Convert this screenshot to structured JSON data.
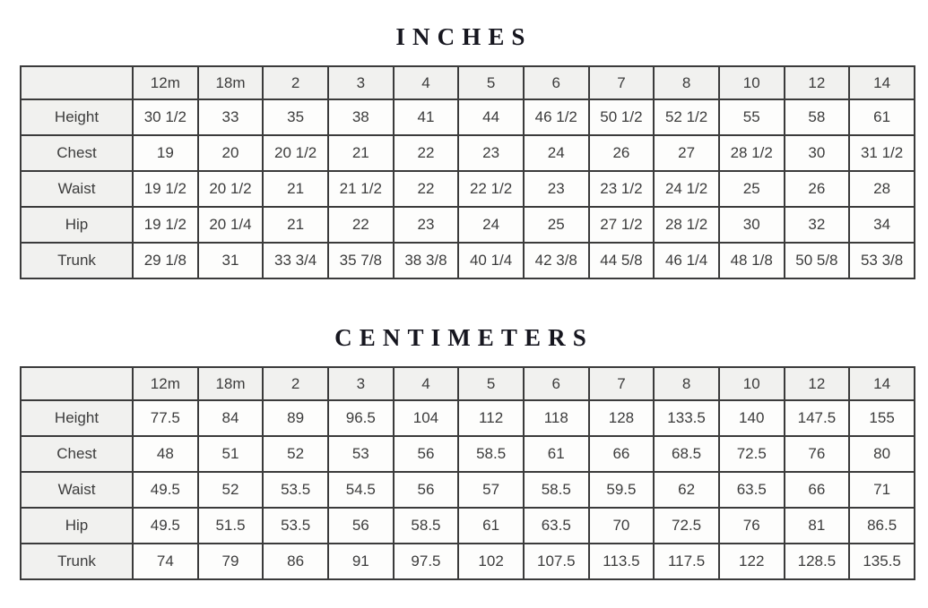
{
  "colors": {
    "table_border": "#3b3b3b",
    "header_background": "#f1f1ef",
    "cell_background": "#fdfdfc",
    "title_color": "#16161f",
    "cell_text": "#3c3c3c"
  },
  "tables": [
    {
      "title": "INCHES",
      "corner": "",
      "columns": [
        "12m",
        "18m",
        "2",
        "3",
        "4",
        "5",
        "6",
        "7",
        "8",
        "10",
        "12",
        "14"
      ],
      "rows": [
        {
          "label": "Height",
          "values": [
            "30 1/2",
            "33",
            "35",
            "38",
            "41",
            "44",
            "46 1/2",
            "50 1/2",
            "52 1/2",
            "55",
            "58",
            "61"
          ]
        },
        {
          "label": "Chest",
          "values": [
            "19",
            "20",
            "20 1/2",
            "21",
            "22",
            "23",
            "24",
            "26",
            "27",
            "28 1/2",
            "30",
            "31 1/2"
          ]
        },
        {
          "label": "Waist",
          "values": [
            "19 1/2",
            "20 1/2",
            "21",
            "21 1/2",
            "22",
            "22 1/2",
            "23",
            "23 1/2",
            "24 1/2",
            "25",
            "26",
            "28"
          ]
        },
        {
          "label": "Hip",
          "values": [
            "19 1/2",
            "20 1/4",
            "21",
            "22",
            "23",
            "24",
            "25",
            "27 1/2",
            "28 1/2",
            "30",
            "32",
            "34"
          ]
        },
        {
          "label": "Trunk",
          "values": [
            "29 1/8",
            "31",
            "33 3/4",
            "35 7/8",
            "38 3/8",
            "40 1/4",
            "42 3/8",
            "44 5/8",
            "46 1/4",
            "48 1/8",
            "50 5/8",
            "53 3/8"
          ]
        }
      ]
    },
    {
      "title": "CENTIMETERS",
      "corner": "",
      "columns": [
        "12m",
        "18m",
        "2",
        "3",
        "4",
        "5",
        "6",
        "7",
        "8",
        "10",
        "12",
        "14"
      ],
      "rows": [
        {
          "label": "Height",
          "values": [
            "77.5",
            "84",
            "89",
            "96.5",
            "104",
            "112",
            "118",
            "128",
            "133.5",
            "140",
            "147.5",
            "155"
          ]
        },
        {
          "label": "Chest",
          "values": [
            "48",
            "51",
            "52",
            "53",
            "56",
            "58.5",
            "61",
            "66",
            "68.5",
            "72.5",
            "76",
            "80"
          ]
        },
        {
          "label": "Waist",
          "values": [
            "49.5",
            "52",
            "53.5",
            "54.5",
            "56",
            "57",
            "58.5",
            "59.5",
            "62",
            "63.5",
            "66",
            "71"
          ]
        },
        {
          "label": "Hip",
          "values": [
            "49.5",
            "51.5",
            "53.5",
            "56",
            "58.5",
            "61",
            "63.5",
            "70",
            "72.5",
            "76",
            "81",
            "86.5"
          ]
        },
        {
          "label": "Trunk",
          "values": [
            "74",
            "79",
            "86",
            "91",
            "97.5",
            "102",
            "107.5",
            "113.5",
            "117.5",
            "122",
            "128.5",
            "135.5"
          ]
        }
      ]
    }
  ]
}
